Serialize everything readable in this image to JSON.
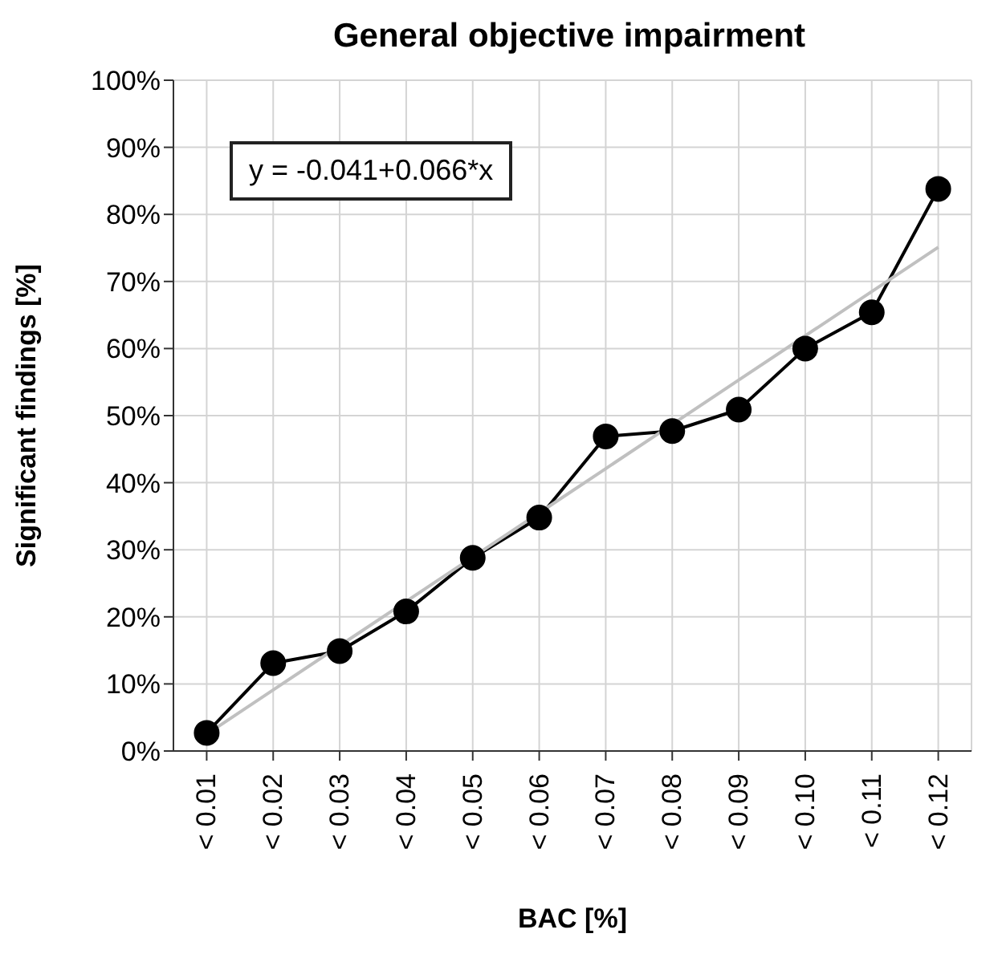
{
  "chart_data": {
    "type": "line",
    "title": "General objective impairment",
    "xlabel": "BAC [%]",
    "ylabel": "Significant findings [%]",
    "categories": [
      "< 0.01",
      "< 0.02",
      "< 0.03",
      "< 0.04",
      "< 0.05",
      "< 0.06",
      "< 0.07",
      "< 0.08",
      "< 0.09",
      "< 0.10",
      "< 0.11",
      "< 0.12"
    ],
    "series": [
      {
        "color": "#c0c0c0",
        "values": [
          2.5,
          9.1,
          15.7,
          22.3,
          28.9,
          35.5,
          42.1,
          48.7,
          55.3,
          61.9,
          68.5,
          75.1
        ],
        "marker": "none"
      },
      {
        "color": "#000000",
        "values": [
          2.7,
          13.1,
          14.9,
          20.8,
          28.8,
          34.8,
          46.9,
          47.7,
          50.9,
          60,
          65.4,
          83.8
        ],
        "marker": "circle"
      }
    ],
    "ylim": [
      0,
      100
    ],
    "yticks": [
      {
        "value": 0,
        "label": "0%"
      },
      {
        "value": 10,
        "label": "10%"
      },
      {
        "value": 20,
        "label": "20%"
      },
      {
        "value": 30,
        "label": "30%"
      },
      {
        "value": 40,
        "label": "40%"
      },
      {
        "value": 50,
        "label": "50%"
      },
      {
        "value": 60,
        "label": "60%"
      },
      {
        "value": 70,
        "label": "70%"
      },
      {
        "value": 80,
        "label": "80%"
      },
      {
        "value": 90,
        "label": "90%"
      },
      {
        "value": 100,
        "label": "100%"
      }
    ],
    "grid": true,
    "line_style": "solid",
    "annotations": [
      "y = -0.041+0.066*x"
    ]
  }
}
